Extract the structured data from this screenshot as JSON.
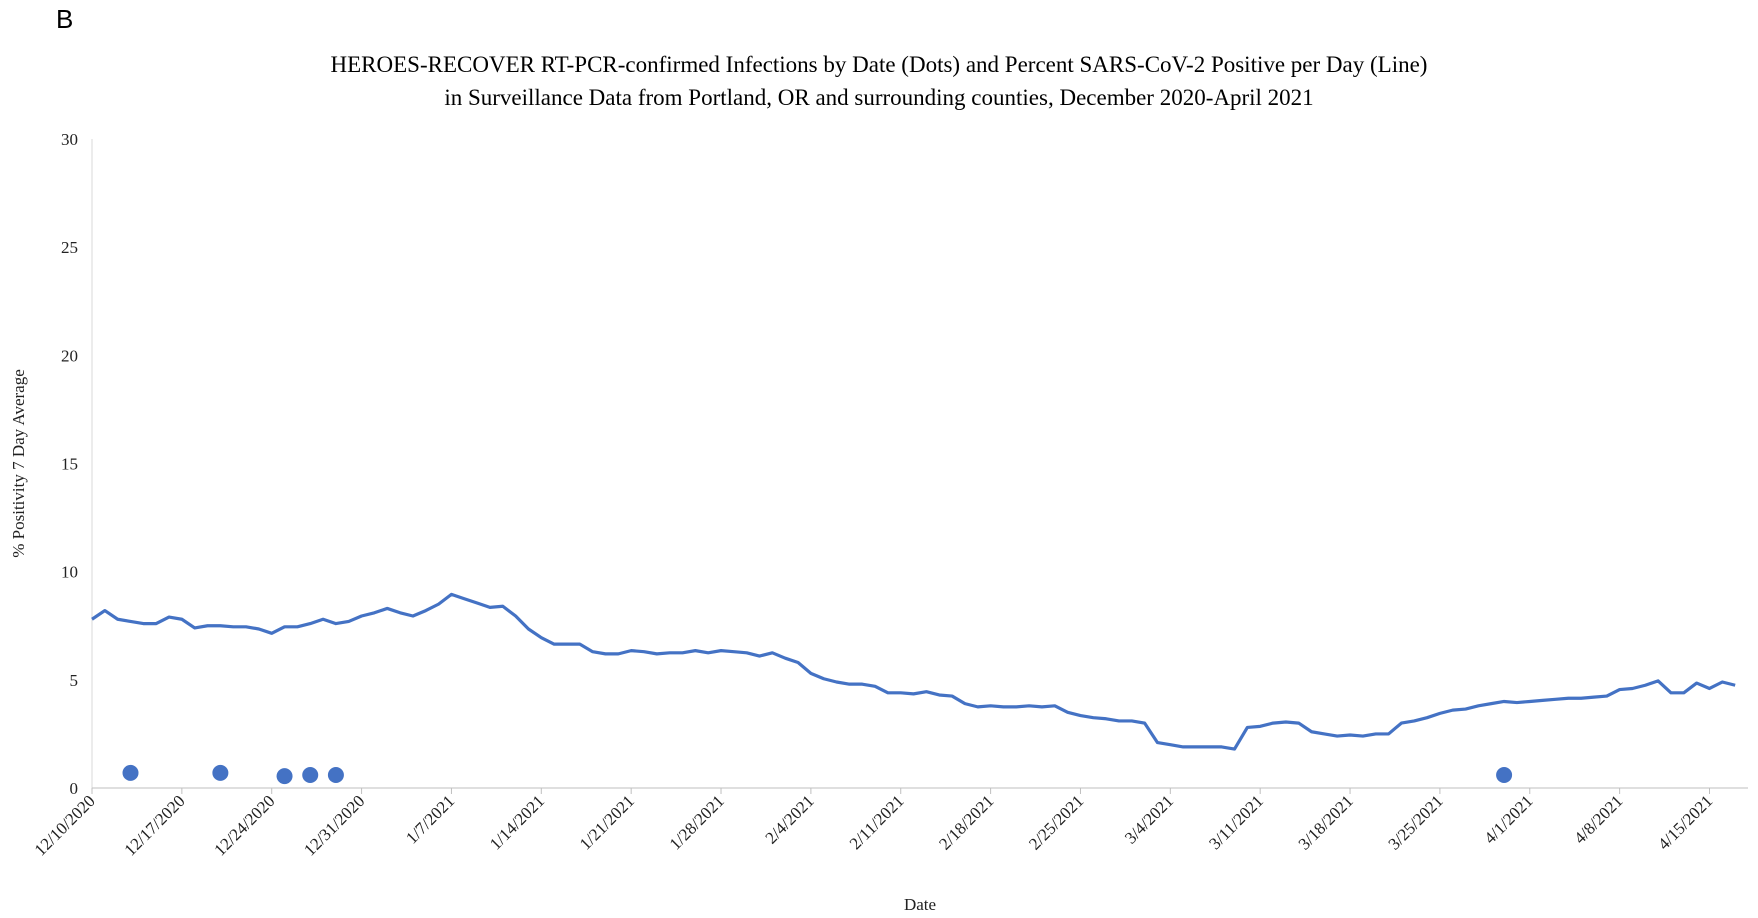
{
  "chart_data": {
    "type": "line",
    "panel_label": "B",
    "title": "HEROES-RECOVER  RT-PCR-confirmed Infections by Date (Dots) and Percent SARS-CoV-2 Positive per Day (Line)\nin Surveillance Data from Portland, OR and surrounding counties, December 2020-April 2021",
    "x_label": "Date",
    "y_label": "% Positivity 7 Day Average",
    "xlim": [
      "12/10/2020",
      "4/18/2021"
    ],
    "xticks": [
      "12/10/2020",
      "12/17/2020",
      "12/24/2020",
      "12/31/2020",
      "1/7/2021",
      "1/14/2021",
      "1/21/2021",
      "1/28/2021",
      "2/4/2021",
      "2/11/2021",
      "2/18/2021",
      "2/25/2021",
      "3/4/2021",
      "3/11/2021",
      "3/18/2021",
      "3/25/2021",
      "4/1/2021",
      "4/8/2021",
      "4/15/2021"
    ],
    "ylim": [
      0,
      30
    ],
    "yticks": [
      0,
      5,
      10,
      15,
      20,
      25,
      30
    ],
    "grid": false,
    "series": [
      {
        "style": "line",
        "color": "#4472c4",
        "x": [
          "12/10/2020",
          "12/11/2020",
          "12/12/2020",
          "12/13/2020",
          "12/14/2020",
          "12/15/2020",
          "12/16/2020",
          "12/17/2020",
          "12/18/2020",
          "12/19/2020",
          "12/20/2020",
          "12/21/2020",
          "12/22/2020",
          "12/23/2020",
          "12/24/2020",
          "12/25/2020",
          "12/26/2020",
          "12/27/2020",
          "12/28/2020",
          "12/29/2020",
          "12/30/2020",
          "12/31/2020",
          "1/1/2021",
          "1/2/2021",
          "1/3/2021",
          "1/4/2021",
          "1/5/2021",
          "1/6/2021",
          "1/7/2021",
          "1/8/2021",
          "1/9/2021",
          "1/10/2021",
          "1/11/2021",
          "1/12/2021",
          "1/13/2021",
          "1/14/2021",
          "1/15/2021",
          "1/16/2021",
          "1/17/2021",
          "1/18/2021",
          "1/19/2021",
          "1/20/2021",
          "1/21/2021",
          "1/22/2021",
          "1/23/2021",
          "1/24/2021",
          "1/25/2021",
          "1/26/2021",
          "1/27/2021",
          "1/28/2021",
          "1/29/2021",
          "1/30/2021",
          "1/31/2021",
          "2/1/2021",
          "2/2/2021",
          "2/3/2021",
          "2/4/2021",
          "2/5/2021",
          "2/6/2021",
          "2/7/2021",
          "2/8/2021",
          "2/9/2021",
          "2/10/2021",
          "2/11/2021",
          "2/12/2021",
          "2/13/2021",
          "2/14/2021",
          "2/15/2021",
          "2/16/2021",
          "2/17/2021",
          "2/18/2021",
          "2/19/2021",
          "2/20/2021",
          "2/21/2021",
          "2/22/2021",
          "2/23/2021",
          "2/24/2021",
          "2/25/2021",
          "2/26/2021",
          "2/27/2021",
          "2/28/2021",
          "3/1/2021",
          "3/2/2021",
          "3/3/2021",
          "3/4/2021",
          "3/5/2021",
          "3/6/2021",
          "3/7/2021",
          "3/8/2021",
          "3/9/2021",
          "3/10/2021",
          "3/11/2021",
          "3/12/2021",
          "3/13/2021",
          "3/14/2021",
          "3/15/2021",
          "3/16/2021",
          "3/17/2021",
          "3/18/2021",
          "3/19/2021",
          "3/20/2021",
          "3/21/2021",
          "3/22/2021",
          "3/23/2021",
          "3/24/2021",
          "3/25/2021",
          "3/26/2021",
          "3/27/2021",
          "3/28/2021",
          "3/29/2021",
          "3/30/2021",
          "3/31/2021",
          "4/1/2021",
          "4/2/2021",
          "4/3/2021",
          "4/4/2021",
          "4/5/2021",
          "4/6/2021",
          "4/7/2021",
          "4/8/2021",
          "4/9/2021",
          "4/10/2021",
          "4/11/2021",
          "4/12/2021",
          "4/13/2021",
          "4/14/2021",
          "4/15/2021",
          "4/16/2021",
          "4/17/2021"
        ],
        "values": [
          7.8,
          8.2,
          7.8,
          7.7,
          7.6,
          7.6,
          7.9,
          7.8,
          7.4,
          7.5,
          7.5,
          7.45,
          7.45,
          7.35,
          7.15,
          7.45,
          7.45,
          7.6,
          7.8,
          7.6,
          7.7,
          7.95,
          8.1,
          8.3,
          8.1,
          7.95,
          8.2,
          8.5,
          8.95,
          8.75,
          8.55,
          8.35,
          8.4,
          7.95,
          7.35,
          6.95,
          6.65,
          6.65,
          6.65,
          6.3,
          6.2,
          6.2,
          6.35,
          6.3,
          6.2,
          6.25,
          6.25,
          6.35,
          6.25,
          6.35,
          6.3,
          6.25,
          6.1,
          6.25,
          6.0,
          5.8,
          5.3,
          5.05,
          4.9,
          4.8,
          4.8,
          4.7,
          4.4,
          4.4,
          4.35,
          4.45,
          4.3,
          4.25,
          3.9,
          3.75,
          3.8,
          3.75,
          3.75,
          3.8,
          3.75,
          3.8,
          3.5,
          3.35,
          3.25,
          3.2,
          3.1,
          3.1,
          3.0,
          2.1,
          2.0,
          1.9,
          1.9,
          1.9,
          1.9,
          1.8,
          2.8,
          2.85,
          3.0,
          3.05,
          3.0,
          2.6,
          2.5,
          2.4,
          2.45,
          2.4,
          2.5,
          2.5,
          3.0,
          3.1,
          3.25,
          3.45,
          3.6,
          3.65,
          3.8,
          3.9,
          4.0,
          3.95,
          4.0,
          4.05,
          4.1,
          4.15,
          4.15,
          4.2,
          4.25,
          4.55,
          4.6,
          4.75,
          4.95,
          4.4,
          4.4,
          4.85,
          4.6,
          4.9,
          4.75
        ]
      },
      {
        "style": "dots",
        "color": "#4472c4",
        "x": [
          "12/13/2020",
          "12/20/2020",
          "12/25/2020",
          "12/27/2020",
          "12/29/2020",
          "3/30/2021"
        ],
        "values": [
          0.7,
          0.7,
          0.55,
          0.6,
          0.6,
          0.6
        ]
      }
    ]
  }
}
